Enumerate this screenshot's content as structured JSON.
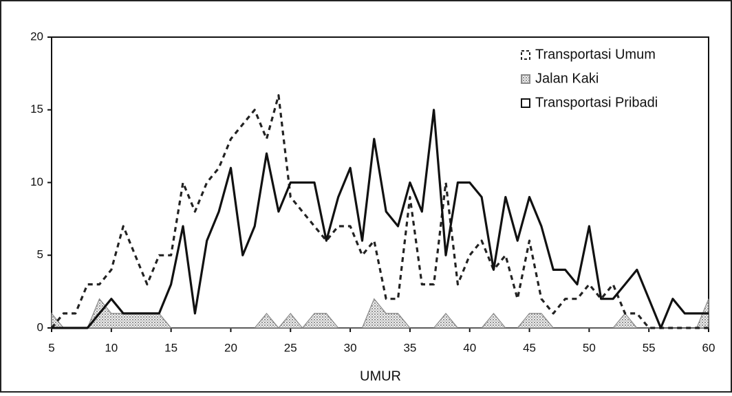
{
  "chart_data": {
    "type": "line",
    "x_label": "UMUR",
    "x": [
      5,
      6,
      7,
      8,
      9,
      10,
      11,
      12,
      13,
      14,
      15,
      16,
      17,
      18,
      19,
      20,
      21,
      22,
      23,
      24,
      25,
      26,
      27,
      28,
      29,
      30,
      31,
      32,
      33,
      34,
      35,
      36,
      37,
      38,
      39,
      40,
      41,
      42,
      43,
      44,
      45,
      46,
      47,
      48,
      49,
      50,
      51,
      52,
      53,
      54,
      55,
      56,
      57,
      58,
      59,
      60
    ],
    "series": [
      {
        "name": "Transportasi Umum",
        "color": "#222222",
        "style": "dashed",
        "values": [
          0,
          1,
          1,
          3,
          3,
          4,
          7,
          5,
          3,
          5,
          5,
          10,
          8,
          10,
          11,
          13,
          14,
          15,
          13,
          16,
          9,
          8,
          7,
          6,
          7,
          7,
          5,
          6,
          2,
          2,
          9,
          3,
          3,
          10,
          3,
          5,
          6,
          4,
          5,
          2,
          6,
          2,
          1,
          2,
          2,
          3,
          2,
          3,
          1,
          1,
          0,
          0,
          0,
          0,
          0,
          0
        ]
      },
      {
        "name": "Jalan Kaki",
        "color": "#888888",
        "style": "area",
        "values": [
          1,
          0,
          0,
          0,
          2,
          1,
          1,
          1,
          1,
          1,
          0,
          0,
          0,
          0,
          0,
          0,
          0,
          0,
          1,
          0,
          1,
          0,
          1,
          1,
          0,
          0,
          0,
          2,
          1,
          1,
          0,
          0,
          0,
          1,
          0,
          0,
          0,
          1,
          0,
          0,
          1,
          1,
          0,
          0,
          0,
          0,
          0,
          0,
          1,
          0,
          0,
          0,
          0,
          0,
          0,
          2
        ]
      },
      {
        "name": "Transportasi Pribadi",
        "color": "#111111",
        "style": "solid",
        "values": [
          0,
          0,
          0,
          0,
          1,
          2,
          1,
          1,
          1,
          1,
          3,
          7,
          1,
          6,
          8,
          11,
          5,
          7,
          12,
          8,
          10,
          10,
          10,
          6,
          9,
          11,
          6,
          13,
          8,
          7,
          10,
          8,
          15,
          5,
          10,
          10,
          9,
          4,
          9,
          6,
          9,
          7,
          4,
          4,
          3,
          7,
          2,
          2,
          3,
          4,
          2,
          0,
          2,
          1,
          1,
          1
        ]
      }
    ],
    "xlim": [
      5,
      60
    ],
    "xticks": [
      5,
      10,
      15,
      20,
      25,
      30,
      35,
      40,
      45,
      50,
      55,
      60
    ],
    "ylim": [
      0,
      20
    ],
    "yticks": [
      0,
      5,
      10,
      15,
      20
    ],
    "legend": "top-right"
  }
}
